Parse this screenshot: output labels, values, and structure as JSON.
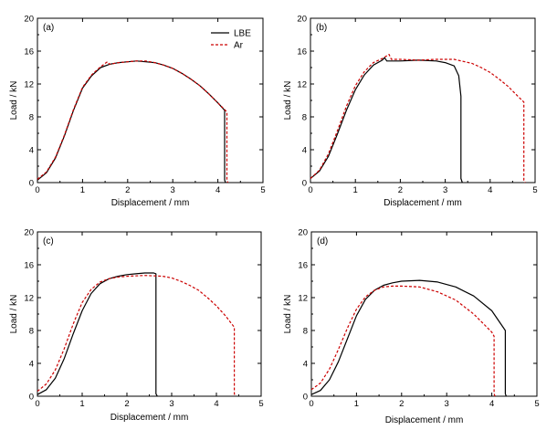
{
  "chart_data": [
    {
      "type": "line",
      "panel_label": "(a)",
      "xlabel": "Displacement / mm",
      "ylabel": "Load / kN",
      "xlim": [
        0,
        5
      ],
      "ylim": [
        0,
        20
      ],
      "xticks": [
        0,
        1,
        2,
        3,
        4,
        5
      ],
      "yticks": [
        0,
        4,
        8,
        12,
        16,
        20
      ],
      "legend": "top-right",
      "series": [
        {
          "name": "LBE",
          "color": "#000000",
          "dash": "solid",
          "x": [
            0,
            0.2,
            0.4,
            0.6,
            0.8,
            1.0,
            1.2,
            1.4,
            1.6,
            1.8,
            2.0,
            2.2,
            2.4,
            2.6,
            2.8,
            3.0,
            3.2,
            3.4,
            3.6,
            3.8,
            4.0,
            4.15,
            4.15,
            4.17
          ],
          "y": [
            0.3,
            1.2,
            3.0,
            5.7,
            8.8,
            11.5,
            13.0,
            14.0,
            14.4,
            14.6,
            14.7,
            14.8,
            14.7,
            14.6,
            14.3,
            13.9,
            13.3,
            12.6,
            11.8,
            10.8,
            9.7,
            8.8,
            0.3,
            0
          ]
        },
        {
          "name": "Ar",
          "color": "#cc0000",
          "dash": "dashed",
          "x": [
            0,
            0.2,
            0.4,
            0.6,
            0.8,
            1.0,
            1.2,
            1.4,
            1.55,
            1.6,
            1.8,
            2.0,
            2.2,
            2.4,
            2.6,
            2.8,
            3.0,
            3.2,
            3.4,
            3.6,
            3.8,
            4.0,
            4.2,
            4.2,
            4.22
          ],
          "y": [
            0.4,
            1.3,
            3.1,
            5.8,
            8.9,
            11.6,
            13.1,
            14.1,
            14.7,
            14.4,
            14.6,
            14.7,
            14.8,
            14.8,
            14.6,
            14.3,
            13.9,
            13.3,
            12.6,
            11.8,
            10.8,
            9.7,
            8.6,
            0.3,
            0
          ]
        }
      ]
    },
    {
      "type": "line",
      "panel_label": "(b)",
      "xlabel": "Displacement / mm",
      "ylabel": "Load / kN",
      "xlim": [
        0,
        5
      ],
      "ylim": [
        0,
        20
      ],
      "xticks": [
        0,
        1,
        2,
        3,
        4,
        5
      ],
      "yticks": [
        0,
        4,
        8,
        12,
        16,
        20
      ],
      "series": [
        {
          "name": "LBE",
          "color": "#000000",
          "dash": "solid",
          "x": [
            0,
            0.2,
            0.4,
            0.6,
            0.8,
            1.0,
            1.2,
            1.4,
            1.6,
            1.65,
            1.7,
            2.0,
            2.4,
            2.8,
            3.0,
            3.2,
            3.3,
            3.35,
            3.35,
            3.38
          ],
          "y": [
            0.5,
            1.4,
            3.2,
            5.9,
            8.8,
            11.3,
            13.1,
            14.3,
            14.9,
            15.2,
            14.8,
            14.8,
            14.9,
            14.8,
            14.6,
            14.2,
            13.0,
            10.5,
            0.5,
            0
          ]
        },
        {
          "name": "Ar",
          "color": "#cc0000",
          "dash": "dashed",
          "x": [
            0,
            0.2,
            0.4,
            0.6,
            0.8,
            1.0,
            1.2,
            1.4,
            1.6,
            1.75,
            1.8,
            2.0,
            2.4,
            2.8,
            3.2,
            3.6,
            3.8,
            4.0,
            4.2,
            4.4,
            4.6,
            4.75,
            4.75,
            4.78
          ],
          "y": [
            0.5,
            1.5,
            3.5,
            6.3,
            9.3,
            11.8,
            13.5,
            14.6,
            15.1,
            15.6,
            15.0,
            15.0,
            14.9,
            15.0,
            15.0,
            14.5,
            14.0,
            13.4,
            12.6,
            11.7,
            10.6,
            9.8,
            0.3,
            0
          ]
        }
      ]
    },
    {
      "type": "line",
      "panel_label": "(c)",
      "xlabel": "Displacement / mm",
      "ylabel": "Load / kN",
      "xlim": [
        0,
        5
      ],
      "ylim": [
        0,
        20
      ],
      "xticks": [
        0,
        1,
        2,
        3,
        4,
        5
      ],
      "yticks": [
        0,
        4,
        8,
        12,
        16,
        20
      ],
      "series": [
        {
          "name": "LBE",
          "color": "#000000",
          "dash": "solid",
          "x": [
            0,
            0.2,
            0.4,
            0.6,
            0.8,
            1.0,
            1.2,
            1.4,
            1.6,
            1.8,
            2.0,
            2.2,
            2.4,
            2.6,
            2.65,
            2.65,
            2.68
          ],
          "y": [
            0.2,
            0.8,
            2.2,
            4.6,
            7.6,
            10.4,
            12.5,
            13.7,
            14.3,
            14.6,
            14.8,
            14.9,
            15.0,
            15.0,
            14.9,
            0.3,
            0
          ]
        },
        {
          "name": "Ar",
          "color": "#cc0000",
          "dash": "dashed",
          "x": [
            0,
            0.2,
            0.4,
            0.6,
            0.8,
            1.0,
            1.2,
            1.4,
            1.6,
            1.8,
            2.0,
            2.4,
            2.8,
            3.0,
            3.2,
            3.4,
            3.6,
            3.8,
            4.0,
            4.2,
            4.4,
            4.4,
            4.42
          ],
          "y": [
            0.6,
            1.5,
            3.2,
            5.8,
            8.8,
            11.4,
            13.0,
            13.9,
            14.3,
            14.5,
            14.6,
            14.7,
            14.6,
            14.4,
            14.0,
            13.5,
            12.9,
            12.0,
            11.0,
            9.8,
            8.4,
            0.3,
            0
          ]
        }
      ]
    },
    {
      "type": "line",
      "panel_label": "(d)",
      "xlabel": "Displacement / mm",
      "ylabel": "Load / kN",
      "xlim": [
        0,
        5
      ],
      "ylim": [
        0,
        20
      ],
      "xticks": [
        0,
        1,
        2,
        3,
        4,
        5
      ],
      "yticks": [
        0,
        4,
        8,
        12,
        16,
        20
      ],
      "series": [
        {
          "name": "LBE",
          "color": "#000000",
          "dash": "solid",
          "x": [
            0,
            0.2,
            0.4,
            0.6,
            0.8,
            1.0,
            1.2,
            1.4,
            1.6,
            1.8,
            2.0,
            2.4,
            2.8,
            3.2,
            3.6,
            4.0,
            4.3,
            4.3,
            4.32
          ],
          "y": [
            0.2,
            0.7,
            2.0,
            4.2,
            7.0,
            9.8,
            11.8,
            12.9,
            13.5,
            13.8,
            14.0,
            14.1,
            13.9,
            13.3,
            12.2,
            10.4,
            8.0,
            0.3,
            0
          ]
        },
        {
          "name": "Ar",
          "color": "#cc0000",
          "dash": "dashed",
          "x": [
            0,
            0.2,
            0.4,
            0.6,
            0.8,
            1.0,
            1.2,
            1.4,
            1.6,
            1.8,
            2.0,
            2.4,
            2.8,
            3.2,
            3.6,
            4.0,
            4.05,
            4.05,
            4.07
          ],
          "y": [
            0.8,
            1.6,
            3.3,
            5.7,
            8.3,
            10.6,
            12.1,
            12.9,
            13.3,
            13.4,
            13.4,
            13.3,
            12.7,
            11.7,
            10.0,
            7.8,
            7.3,
            0.3,
            0
          ]
        }
      ]
    }
  ],
  "legend": {
    "items": [
      {
        "label": "LBE",
        "color": "#000000",
        "dash": "solid"
      },
      {
        "label": "Ar",
        "color": "#cc0000",
        "dash": "dashed"
      }
    ]
  }
}
